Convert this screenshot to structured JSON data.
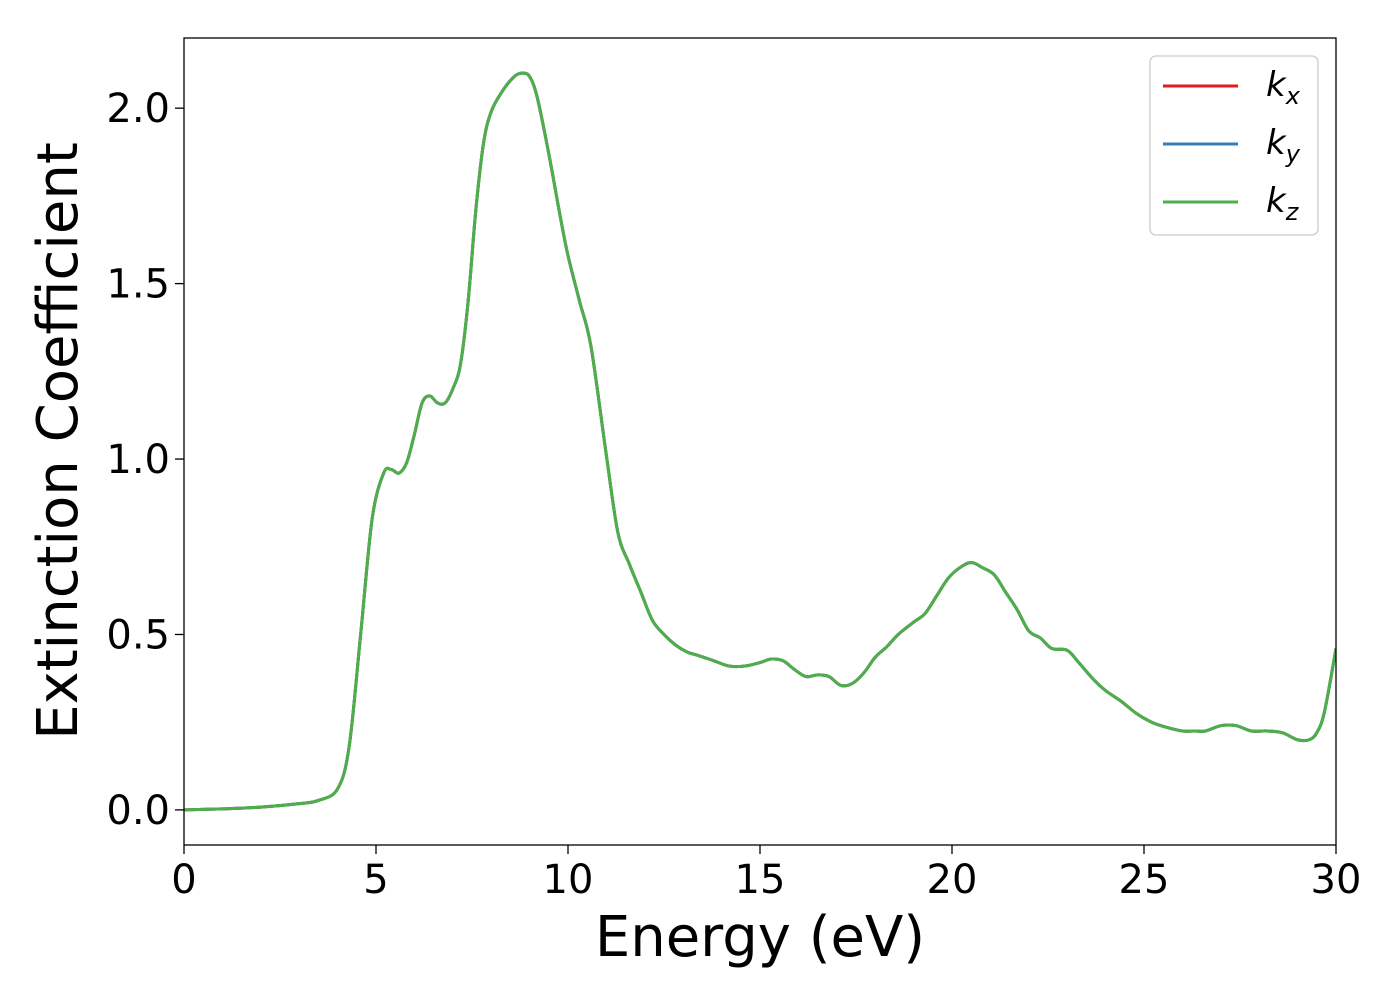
{
  "chart_data": {
    "type": "line",
    "xlabel": "Energy (eV)",
    "ylabel": "Extinction Coefficient",
    "xlim": [
      0,
      30
    ],
    "ylim": [
      -0.1,
      2.2
    ],
    "xticks": [
      0,
      5,
      10,
      15,
      20,
      25,
      30
    ],
    "xtick_labels": [
      "0",
      "5",
      "10",
      "15",
      "20",
      "25",
      "30"
    ],
    "yticks": [
      0.0,
      0.5,
      1.0,
      1.5,
      2.0
    ],
    "ytick_labels": [
      "0.0",
      "0.5",
      "1.0",
      "1.5",
      "2.0"
    ],
    "grid": false,
    "legend_position": "top-right",
    "x": [
      0,
      1,
      2,
      3,
      3.5,
      4,
      4.3,
      4.6,
      4.9,
      5.2,
      5.4,
      5.6,
      5.8,
      6.0,
      6.2,
      6.4,
      6.6,
      6.8,
      7.0,
      7.2,
      7.4,
      7.6,
      7.8,
      8.0,
      8.3,
      8.6,
      8.8,
      9.0,
      9.2,
      9.5,
      9.8,
      10.0,
      10.3,
      10.6,
      11.0,
      11.3,
      11.6,
      11.9,
      12.2,
      12.5,
      12.8,
      13.1,
      13.4,
      13.8,
      14.2,
      14.6,
      15.0,
      15.3,
      15.6,
      15.9,
      16.2,
      16.5,
      16.8,
      17.1,
      17.4,
      17.7,
      18.0,
      18.3,
      18.6,
      19.0,
      19.3,
      19.6,
      19.9,
      20.2,
      20.5,
      20.8,
      21.1,
      21.4,
      21.7,
      22.0,
      22.3,
      22.6,
      23.0,
      23.3,
      23.7,
      24.0,
      24.4,
      24.8,
      25.2,
      25.6,
      26.0,
      26.3,
      26.6,
      27.0,
      27.4,
      27.8,
      28.2,
      28.6,
      29.0,
      29.3,
      29.5,
      29.7,
      30.0
    ],
    "series": [
      {
        "name": "k_x",
        "legend_main": "k",
        "legend_sub": "x",
        "color": "#e41a1c",
        "y": [
          0.0,
          0.003,
          0.008,
          0.018,
          0.027,
          0.06,
          0.18,
          0.5,
          0.83,
          0.96,
          0.97,
          0.96,
          0.99,
          1.07,
          1.16,
          1.18,
          1.16,
          1.16,
          1.2,
          1.27,
          1.45,
          1.71,
          1.9,
          1.99,
          2.05,
          2.09,
          2.1,
          2.09,
          2.03,
          1.87,
          1.69,
          1.58,
          1.45,
          1.32,
          1.01,
          0.79,
          0.7,
          0.62,
          0.54,
          0.5,
          0.47,
          0.45,
          0.44,
          0.425,
          0.41,
          0.41,
          0.42,
          0.43,
          0.425,
          0.4,
          0.38,
          0.385,
          0.38,
          0.355,
          0.36,
          0.39,
          0.435,
          0.465,
          0.5,
          0.535,
          0.56,
          0.61,
          0.66,
          0.69,
          0.705,
          0.69,
          0.67,
          0.62,
          0.57,
          0.51,
          0.49,
          0.46,
          0.455,
          0.42,
          0.37,
          0.34,
          0.31,
          0.275,
          0.25,
          0.235,
          0.225,
          0.225,
          0.225,
          0.24,
          0.24,
          0.225,
          0.225,
          0.22,
          0.2,
          0.2,
          0.22,
          0.28,
          0.46
        ]
      },
      {
        "name": "k_y",
        "legend_main": "k",
        "legend_sub": "y",
        "color": "#377eb8",
        "y": [
          0.0,
          0.003,
          0.008,
          0.018,
          0.027,
          0.06,
          0.18,
          0.5,
          0.83,
          0.96,
          0.97,
          0.96,
          0.99,
          1.07,
          1.16,
          1.18,
          1.16,
          1.16,
          1.2,
          1.27,
          1.45,
          1.71,
          1.9,
          1.99,
          2.05,
          2.09,
          2.1,
          2.09,
          2.03,
          1.87,
          1.69,
          1.58,
          1.45,
          1.32,
          1.01,
          0.79,
          0.7,
          0.62,
          0.54,
          0.5,
          0.47,
          0.45,
          0.44,
          0.425,
          0.41,
          0.41,
          0.42,
          0.43,
          0.425,
          0.4,
          0.38,
          0.385,
          0.38,
          0.355,
          0.36,
          0.39,
          0.435,
          0.465,
          0.5,
          0.535,
          0.56,
          0.61,
          0.66,
          0.69,
          0.705,
          0.69,
          0.67,
          0.62,
          0.57,
          0.51,
          0.49,
          0.46,
          0.455,
          0.42,
          0.37,
          0.34,
          0.31,
          0.275,
          0.25,
          0.235,
          0.225,
          0.225,
          0.225,
          0.24,
          0.24,
          0.225,
          0.225,
          0.22,
          0.2,
          0.2,
          0.22,
          0.28,
          0.46
        ]
      },
      {
        "name": "k_z",
        "legend_main": "k",
        "legend_sub": "z",
        "color": "#4daf4a",
        "y": [
          0.0,
          0.003,
          0.008,
          0.018,
          0.027,
          0.06,
          0.18,
          0.5,
          0.83,
          0.96,
          0.97,
          0.96,
          0.99,
          1.07,
          1.16,
          1.18,
          1.16,
          1.16,
          1.2,
          1.27,
          1.45,
          1.71,
          1.9,
          1.99,
          2.05,
          2.09,
          2.1,
          2.09,
          2.03,
          1.87,
          1.69,
          1.58,
          1.45,
          1.32,
          1.01,
          0.79,
          0.7,
          0.62,
          0.54,
          0.5,
          0.47,
          0.45,
          0.44,
          0.425,
          0.41,
          0.41,
          0.42,
          0.43,
          0.425,
          0.4,
          0.38,
          0.385,
          0.38,
          0.355,
          0.36,
          0.39,
          0.435,
          0.465,
          0.5,
          0.535,
          0.56,
          0.61,
          0.66,
          0.69,
          0.705,
          0.69,
          0.67,
          0.62,
          0.57,
          0.51,
          0.49,
          0.46,
          0.455,
          0.42,
          0.37,
          0.34,
          0.31,
          0.275,
          0.25,
          0.235,
          0.225,
          0.225,
          0.225,
          0.24,
          0.24,
          0.225,
          0.225,
          0.22,
          0.2,
          0.2,
          0.22,
          0.28,
          0.46
        ]
      }
    ]
  }
}
